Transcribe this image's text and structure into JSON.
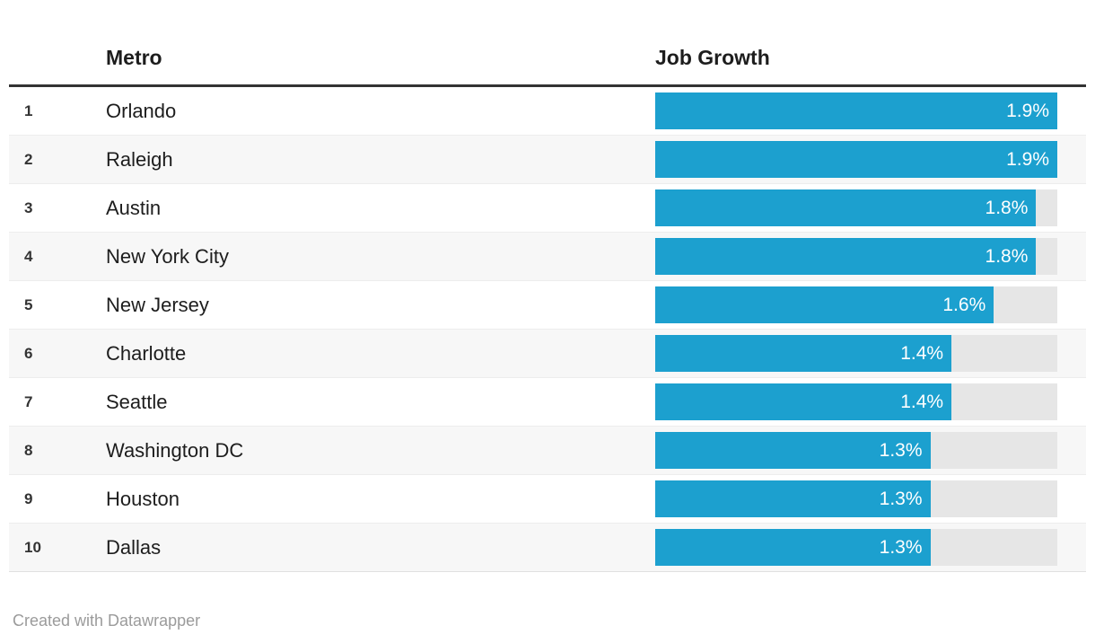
{
  "table": {
    "columns": {
      "rank": "",
      "metro": "Metro",
      "job_growth": "Job Growth"
    },
    "rows": [
      {
        "rank": "1",
        "metro": "Orlando",
        "value": 1.9,
        "label": "1.9%"
      },
      {
        "rank": "2",
        "metro": "Raleigh",
        "value": 1.9,
        "label": "1.9%"
      },
      {
        "rank": "3",
        "metro": "Austin",
        "value": 1.8,
        "label": "1.8%"
      },
      {
        "rank": "4",
        "metro": "New York City",
        "value": 1.8,
        "label": "1.8%"
      },
      {
        "rank": "5",
        "metro": "New Jersey",
        "value": 1.6,
        "label": "1.6%"
      },
      {
        "rank": "6",
        "metro": "Charlotte",
        "value": 1.4,
        "label": "1.4%"
      },
      {
        "rank": "7",
        "metro": "Seattle",
        "value": 1.4,
        "label": "1.4%"
      },
      {
        "rank": "8",
        "metro": "Washington DC",
        "value": 1.3,
        "label": "1.3%"
      },
      {
        "rank": "9",
        "metro": "Houston",
        "value": 1.3,
        "label": "1.3%"
      },
      {
        "rank": "10",
        "metro": "Dallas",
        "value": 1.3,
        "label": "1.3%"
      }
    ]
  },
  "footer": {
    "credit": "Created with Datawrapper"
  },
  "colors": {
    "bar": "#1ca0cf",
    "track": "#e6e6e6",
    "alt_row": "#f7f7f7",
    "header_rule": "#333333",
    "footer_text": "#9b9b9b"
  },
  "chart_data": {
    "type": "bar",
    "orientation": "horizontal",
    "title": "",
    "xlabel": "",
    "ylabel": "Job Growth",
    "categories": [
      "Orlando",
      "Raleigh",
      "Austin",
      "New York City",
      "New Jersey",
      "Charlotte",
      "Seattle",
      "Washington DC",
      "Houston",
      "Dallas"
    ],
    "values": [
      1.9,
      1.9,
      1.8,
      1.8,
      1.6,
      1.4,
      1.4,
      1.3,
      1.3,
      1.3
    ],
    "value_labels": [
      "1.9%",
      "1.9%",
      "1.8%",
      "1.8%",
      "1.6%",
      "1.4%",
      "1.4%",
      "1.3%",
      "1.3%",
      "1.3%"
    ],
    "ranks": [
      1,
      2,
      3,
      4,
      5,
      6,
      7,
      8,
      9,
      10
    ],
    "xlim": [
      0,
      1.9
    ],
    "grid": false,
    "legend": false,
    "value_labels_position": "inside-end"
  }
}
